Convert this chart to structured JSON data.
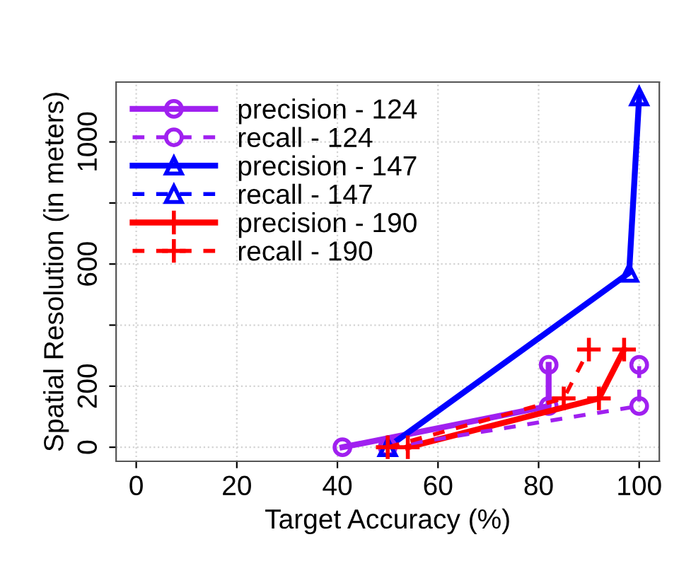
{
  "chart_data": {
    "type": "line",
    "xlabel": "Target Accuracy (%)",
    "ylabel": "Spatial Resolution (in meters)",
    "xlim": [
      -4,
      104
    ],
    "xticks": [
      0,
      20,
      40,
      60,
      80,
      100
    ],
    "ylim": [
      -46,
      1196
    ],
    "yticks": [
      0,
      200,
      {
        "value": 400,
        "label": null
      },
      600,
      {
        "value": 800,
        "label": null
      },
      1000
    ],
    "grid": true,
    "legend": "top left",
    "series": [
      {
        "name": "precision - 124",
        "color": "#a020f0",
        "marker": "circle",
        "line_style": "solid",
        "x": [
          41,
          82,
          82
        ],
        "values": [
          0,
          135,
          270
        ]
      },
      {
        "name": "recall - 124",
        "color": "#a020f0",
        "marker": "circle",
        "line_style": "dashed",
        "x": [
          50,
          100,
          100
        ],
        "values": [
          0,
          135,
          270
        ]
      },
      {
        "name": "precision - 147",
        "color": "#0000ff",
        "marker": "triangle",
        "line_style": "solid",
        "x": [
          50,
          98,
          100
        ],
        "values": [
          0,
          571,
          1149
        ]
      },
      {
        "name": "recall - 147",
        "color": "#0000ff",
        "marker": "triangle",
        "line_style": "dashed",
        "x": [
          50
        ],
        "values": [
          0
        ]
      },
      {
        "name": "precision - 190",
        "color": "#ff0000",
        "marker": "cross",
        "line_style": "solid",
        "x": [
          54,
          92,
          97
        ],
        "values": [
          0,
          160,
          320
        ]
      },
      {
        "name": "recall - 190",
        "color": "#ff0000",
        "marker": "cross",
        "line_style": "dashed",
        "x": [
          50,
          85,
          90
        ],
        "values": [
          0,
          160,
          320
        ]
      }
    ]
  }
}
